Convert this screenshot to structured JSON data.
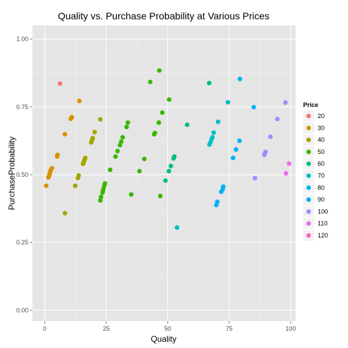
{
  "chart_data": {
    "type": "scatter",
    "title": "Quality vs. Purchase Probability at Various Prices",
    "xlabel": "Quality",
    "ylabel": "PurchaseProbability",
    "xlim": [
      -5,
      102
    ],
    "ylim": [
      -0.04,
      1.05
    ],
    "x_ticks": [
      0,
      25,
      50,
      75,
      100
    ],
    "x_tick_labels": [
      "0",
      "25",
      "50",
      "75",
      "100"
    ],
    "y_ticks": [
      0.0,
      0.25,
      0.5,
      0.75,
      1.0
    ],
    "y_tick_labels": [
      "0.00",
      "0.25",
      "0.50",
      "0.75",
      "1.00"
    ],
    "grid": true,
    "background": "#e5e5e5",
    "legend": {
      "title": "Price",
      "placement": "right",
      "entries": [
        "20",
        "30",
        "40",
        "50",
        "60",
        "70",
        "80",
        "90",
        "100",
        "110",
        "120"
      ]
    },
    "series": [
      {
        "name": "20",
        "color": "#F8766D",
        "points": [
          [
            6.2,
            0.836
          ]
        ]
      },
      {
        "name": "30",
        "color": "#D89000",
        "points": [
          [
            0.6,
            0.459
          ],
          [
            1.5,
            0.49
          ],
          [
            1.8,
            0.497
          ],
          [
            2.1,
            0.505
          ],
          [
            2.3,
            0.513
          ],
          [
            2.5,
            0.518
          ],
          [
            2.9,
            0.524
          ],
          [
            5.0,
            0.567
          ],
          [
            5.2,
            0.573
          ],
          [
            8.2,
            0.649
          ],
          [
            10.6,
            0.706
          ],
          [
            11.0,
            0.712
          ],
          [
            14.1,
            0.772
          ]
        ]
      },
      {
        "name": "40",
        "color": "#A3A500",
        "points": [
          [
            8.2,
            0.358
          ],
          [
            12.4,
            0.459
          ],
          [
            13.5,
            0.488
          ],
          [
            13.8,
            0.497
          ],
          [
            15.6,
            0.54
          ],
          [
            15.9,
            0.548
          ],
          [
            16.2,
            0.556
          ],
          [
            16.5,
            0.562
          ],
          [
            18.9,
            0.619
          ],
          [
            19.2,
            0.627
          ],
          [
            19.5,
            0.635
          ],
          [
            20.3,
            0.657
          ],
          [
            22.6,
            0.704
          ]
        ]
      },
      {
        "name": "50",
        "color": "#39B600",
        "points": [
          [
            22.6,
            0.405
          ],
          [
            22.9,
            0.418
          ],
          [
            23.5,
            0.434
          ],
          [
            23.7,
            0.441
          ],
          [
            23.9,
            0.448
          ],
          [
            24.2,
            0.459
          ],
          [
            24.5,
            0.468
          ],
          [
            26.6,
            0.518
          ],
          [
            28.8,
            0.567
          ],
          [
            29.6,
            0.587
          ],
          [
            30.6,
            0.609
          ],
          [
            31.1,
            0.622
          ],
          [
            31.7,
            0.638
          ],
          [
            33.3,
            0.676
          ],
          [
            33.8,
            0.692
          ],
          [
            35.2,
            0.427
          ],
          [
            38.5,
            0.513
          ],
          [
            40.5,
            0.558
          ],
          [
            42.9,
            0.842
          ],
          [
            44.5,
            0.649
          ],
          [
            44.8,
            0.654
          ],
          [
            46.4,
            0.692
          ],
          [
            46.6,
            0.884
          ],
          [
            47.0,
            0.421
          ],
          [
            47.8,
            0.729
          ],
          [
            50.6,
            0.777
          ]
        ]
      },
      {
        "name": "60",
        "color": "#00BF7D",
        "points": [
          [
            49.1,
            0.478
          ],
          [
            50.5,
            0.513
          ],
          [
            51.3,
            0.532
          ],
          [
            52.4,
            0.56
          ],
          [
            52.7,
            0.567
          ],
          [
            57.9,
            0.684
          ],
          [
            66.9,
            0.838
          ]
        ]
      },
      {
        "name": "70",
        "color": "#00BFC4",
        "points": [
          [
            53.8,
            0.305
          ],
          [
            67.0,
            0.611
          ],
          [
            67.4,
            0.62
          ],
          [
            67.9,
            0.631
          ],
          [
            68.2,
            0.638
          ],
          [
            68.7,
            0.655
          ],
          [
            70.5,
            0.695
          ],
          [
            74.5,
            0.767
          ]
        ]
      },
      {
        "name": "80",
        "color": "#00B0F6",
        "points": [
          [
            69.8,
            0.388
          ],
          [
            70.2,
            0.4
          ],
          [
            71.8,
            0.437
          ],
          [
            72.4,
            0.447
          ],
          [
            72.6,
            0.456
          ],
          [
            76.6,
            0.562
          ],
          [
            77.8,
            0.593
          ],
          [
            79.2,
            0.625
          ],
          [
            79.4,
            0.853
          ]
        ]
      },
      {
        "name": "90",
        "color": "#00B0F6",
        "points": [
          [
            85.0,
            0.749
          ]
        ]
      },
      {
        "name": "100",
        "color": "#9590FF",
        "points": [
          [
            85.5,
            0.487
          ],
          [
            89.3,
            0.573
          ],
          [
            89.5,
            0.578
          ],
          [
            89.8,
            0.584
          ],
          [
            91.8,
            0.64
          ],
          [
            94.6,
            0.705
          ],
          [
            97.9,
            0.766
          ]
        ]
      },
      {
        "name": "110",
        "color": "#E76BF3",
        "points": [
          [
            98.1,
            0.505
          ],
          [
            99.4,
            0.541
          ]
        ]
      },
      {
        "name": "120",
        "color": "#FF62BC",
        "points": []
      }
    ]
  }
}
